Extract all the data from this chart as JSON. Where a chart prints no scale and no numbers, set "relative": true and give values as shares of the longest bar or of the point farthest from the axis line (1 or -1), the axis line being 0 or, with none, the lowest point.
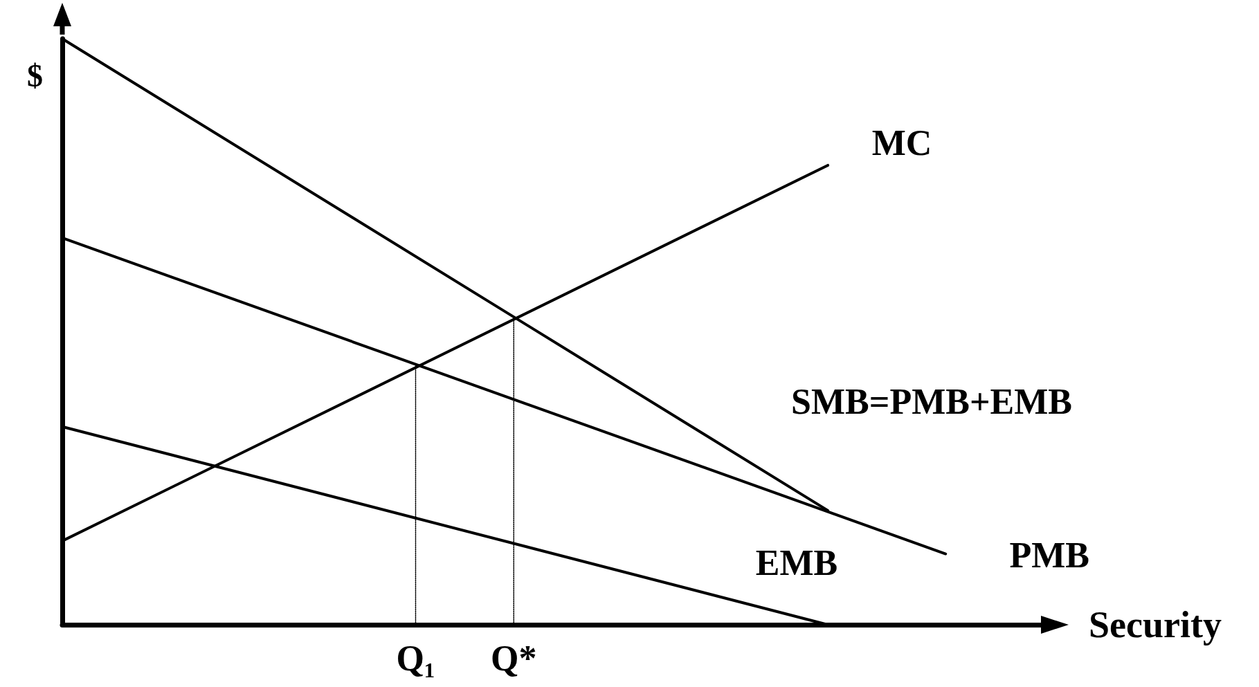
{
  "chart_data": {
    "type": "line",
    "relative": true,
    "xlabel": "Security",
    "ylabel": "$",
    "grid": false,
    "legend": false,
    "marker": "none",
    "line_style": "solid",
    "categories": [
      null,
      null,
      null,
      null,
      null,
      null,
      null,
      null,
      null,
      null,
      null,
      null,
      null,
      null,
      null,
      null,
      null,
      null,
      "Q₁",
      null,
      null,
      null,
      null,
      "Q*",
      null,
      null,
      null,
      null,
      null,
      null,
      null,
      null,
      null,
      null,
      null,
      null,
      null,
      null,
      null,
      null,
      null,
      null,
      null,
      null,
      null,
      null,
      null,
      null,
      null,
      null,
      null
    ],
    "series": [
      {
        "name": "SMB=PMB+EMB",
        "color": "#000000",
        "values": [
          1,
          null,
          null,
          null,
          null,
          null,
          null,
          null,
          null,
          null,
          null,
          null,
          null,
          null,
          null,
          null,
          null,
          null,
          null,
          null,
          null,
          null,
          null,
          null,
          null,
          null,
          null,
          null,
          null,
          null,
          null,
          null,
          null,
          null,
          null,
          null,
          null,
          null,
          null,
          0.195,
          null,
          null,
          null,
          null,
          null,
          null,
          null,
          null,
          null,
          null,
          null
        ]
      },
      {
        "name": "PMB",
        "color": "#000000",
        "values": [
          0.66,
          null,
          null,
          null,
          null,
          null,
          null,
          null,
          null,
          null,
          null,
          null,
          null,
          null,
          null,
          null,
          null,
          null,
          null,
          null,
          null,
          null,
          null,
          null,
          null,
          null,
          null,
          null,
          null,
          null,
          null,
          null,
          null,
          null,
          null,
          null,
          null,
          null,
          null,
          null,
          null,
          null,
          null,
          null,
          null,
          0.121,
          null,
          null,
          null,
          null,
          null
        ]
      },
      {
        "name": "EMB",
        "color": "#000000",
        "values": [
          0.338,
          null,
          null,
          null,
          null,
          null,
          null,
          null,
          null,
          null,
          null,
          null,
          null,
          null,
          null,
          null,
          null,
          null,
          null,
          null,
          null,
          null,
          null,
          null,
          null,
          null,
          null,
          null,
          null,
          null,
          null,
          null,
          null,
          null,
          null,
          null,
          null,
          null,
          null,
          0,
          null,
          null,
          null,
          null,
          null,
          null,
          null,
          null,
          null,
          null,
          null
        ]
      },
      {
        "name": "MC",
        "color": "#000000",
        "values": [
          0.143,
          null,
          null,
          null,
          null,
          null,
          null,
          null,
          null,
          null,
          null,
          null,
          null,
          null,
          null,
          null,
          null,
          null,
          null,
          null,
          null,
          null,
          null,
          null,
          null,
          null,
          null,
          null,
          null,
          null,
          null,
          null,
          null,
          null,
          null,
          null,
          null,
          null,
          null,
          0.784,
          null,
          null,
          null,
          null,
          null,
          null,
          null,
          null,
          null,
          null,
          null
        ]
      },
      {
        "color": "#000000",
        "line_style": "dotted",
        "x": [
          "Q₁",
          "Q₁"
        ],
        "values": [
          0,
          0.443
        ]
      },
      {
        "color": "#000000",
        "line_style": "dotted",
        "x": [
          "Q*",
          "Q*"
        ],
        "values": [
          0,
          0.521
        ]
      }
    ]
  }
}
